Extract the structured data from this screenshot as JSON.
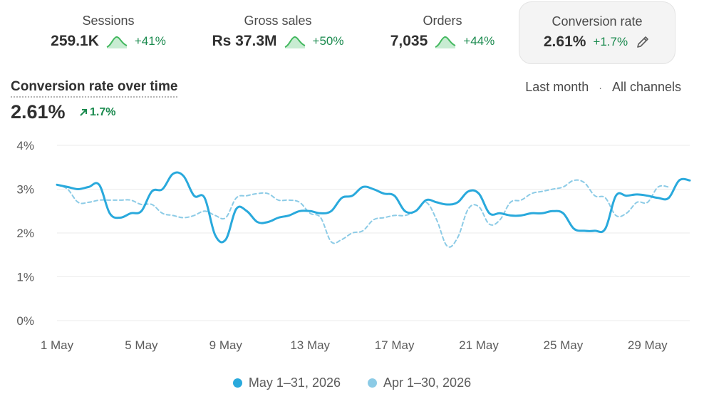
{
  "metrics": [
    {
      "label": "Sessions",
      "value": "259.1K",
      "change": "+41%",
      "selected": false
    },
    {
      "label": "Gross sales",
      "value": "Rs 37.3M",
      "change": "+50%",
      "selected": false
    },
    {
      "label": "Orders",
      "value": "7,035",
      "change": "+44%",
      "selected": false
    },
    {
      "label": "Conversion rate",
      "value": "2.61%",
      "change": "+1.7%",
      "selected": true
    }
  ],
  "card": {
    "title": "Conversion rate over time",
    "value": "2.61%",
    "change": "1.7%"
  },
  "filters": {
    "period": "Last month",
    "separator": "·",
    "channel": "All channels"
  },
  "colors": {
    "current": "#29a9dc",
    "previous": "#8ccbe6",
    "positive": "#1a8a4e",
    "grid": "#ebebeb"
  },
  "chart_data": {
    "type": "line",
    "title": "Conversion rate over time",
    "xlabel": "",
    "ylabel": "",
    "y_unit": "%",
    "ylim": [
      0,
      4
    ],
    "yticks": [
      "0%",
      "1%",
      "2%",
      "3%",
      "4%"
    ],
    "x_ticks": [
      "1 May",
      "5 May",
      "9 May",
      "13 May",
      "17 May",
      "21 May",
      "25 May",
      "29 May"
    ],
    "grid": true,
    "legend": "bottom-center",
    "series": [
      {
        "name": "May 1–31, 2026",
        "style": "solid",
        "x": [
          1,
          1.5,
          2,
          2.5,
          3,
          3.5,
          4,
          4.5,
          5,
          5.5,
          6,
          6.5,
          7,
          7.5,
          8,
          8.5,
          9,
          9.5,
          10,
          10.5,
          11,
          11.5,
          12,
          12.5,
          13,
          13.5,
          14,
          14.5,
          15,
          15.5,
          16,
          16.5,
          17,
          17.5,
          18,
          18.5,
          19,
          19.5,
          20,
          20.5,
          21,
          21.5,
          22,
          22.5,
          23,
          23.5,
          24,
          24.5,
          25,
          25.5,
          26,
          26.5,
          27,
          27.5,
          28,
          28.5,
          29,
          29.5,
          30,
          30.5,
          31
        ],
        "y": [
          3.1,
          3.05,
          3.0,
          3.05,
          3.1,
          2.45,
          2.35,
          2.45,
          2.5,
          2.95,
          3.0,
          3.35,
          3.3,
          2.85,
          2.8,
          1.95,
          1.85,
          2.55,
          2.5,
          2.25,
          2.25,
          2.35,
          2.4,
          2.5,
          2.5,
          2.45,
          2.5,
          2.8,
          2.85,
          3.05,
          3.0,
          2.9,
          2.85,
          2.5,
          2.5,
          2.75,
          2.7,
          2.65,
          2.7,
          2.95,
          2.9,
          2.45,
          2.45,
          2.4,
          2.4,
          2.45,
          2.45,
          2.5,
          2.45,
          2.1,
          2.05,
          2.05,
          2.1,
          2.85,
          2.85,
          2.88,
          2.85,
          2.8,
          2.8,
          3.2,
          3.2
        ]
      },
      {
        "name": "Apr 1–30, 2026",
        "style": "dashed",
        "x": [
          1,
          1.5,
          2,
          2.5,
          3,
          3.5,
          4,
          4.5,
          5,
          5.5,
          6,
          6.5,
          7,
          7.5,
          8,
          8.5,
          9,
          9.5,
          10,
          10.5,
          11,
          11.5,
          12,
          12.5,
          13,
          13.5,
          14,
          14.5,
          15,
          15.5,
          16,
          16.5,
          17,
          17.5,
          18,
          18.5,
          19,
          19.5,
          20,
          20.5,
          21,
          21.5,
          22,
          22.5,
          23,
          23.5,
          24,
          24.5,
          25,
          25.5,
          26,
          26.5,
          27,
          27.5,
          28,
          28.5,
          29,
          29.5,
          30
        ],
        "y": [
          3.1,
          3.0,
          2.7,
          2.7,
          2.75,
          2.75,
          2.75,
          2.75,
          2.65,
          2.65,
          2.45,
          2.4,
          2.35,
          2.4,
          2.5,
          2.4,
          2.35,
          2.8,
          2.85,
          2.9,
          2.9,
          2.75,
          2.75,
          2.7,
          2.45,
          2.35,
          1.8,
          1.85,
          2.0,
          2.05,
          2.3,
          2.35,
          2.4,
          2.4,
          2.5,
          2.7,
          2.3,
          1.7,
          1.9,
          2.55,
          2.6,
          2.2,
          2.3,
          2.7,
          2.75,
          2.9,
          2.95,
          3.0,
          3.05,
          3.2,
          3.15,
          2.85,
          2.8,
          2.4,
          2.45,
          2.7,
          2.7,
          3.05,
          3.05
        ]
      }
    ]
  }
}
